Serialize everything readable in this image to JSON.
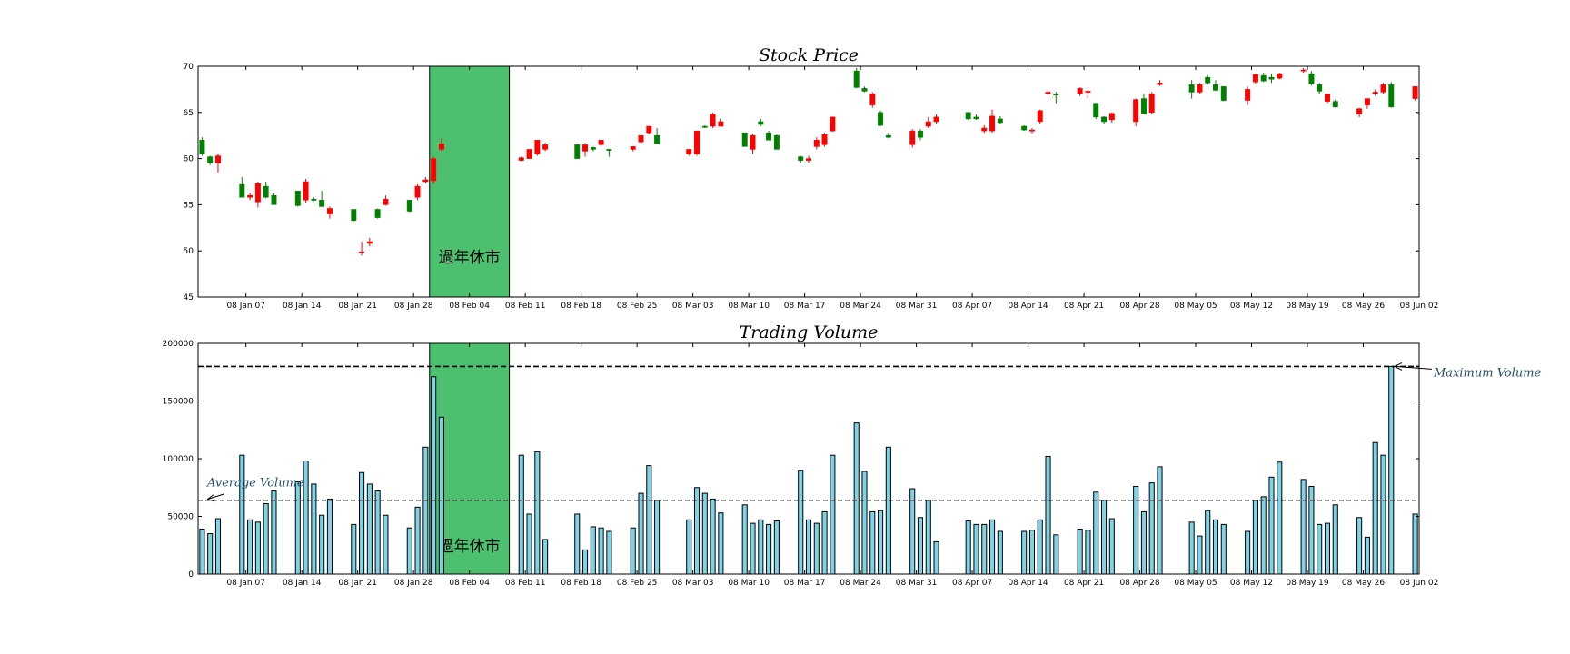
{
  "chart_data": [
    {
      "type": "candlestick",
      "title": "Stock Price",
      "xlabel": "",
      "ylabel": "",
      "xlim": [
        "2014-01-01",
        "2014-06-03"
      ],
      "ylim": [
        45,
        70
      ],
      "yticks": [
        45,
        50,
        55,
        60,
        65,
        70
      ],
      "xticks": [
        "08 Jan 07",
        "08 Jan 14",
        "08 Jan 21",
        "08 Jan 28",
        "08 Feb 04",
        "08 Feb 11",
        "08 Feb 18",
        "08 Feb 25",
        "08 Mar 03",
        "08 Mar 10",
        "08 Mar 17",
        "08 Mar 24",
        "08 Mar 31",
        "08 Apr 07",
        "08 Apr 14",
        "08 Apr 21",
        "08 Apr 28",
        "08 May 05",
        "08 May 12",
        "08 May 19",
        "08 May 26",
        "08 Jun 02"
      ],
      "holiday": {
        "label": "過年休市",
        "start": "2014-01-30",
        "end": "2014-02-09",
        "color": "#4cc06f"
      },
      "colors": {
        "up": "#ff0000",
        "down": "#008000"
      },
      "candles": [
        [
          "2014-01-01",
          62.0,
          62.3,
          60.3,
          60.5
        ],
        [
          "2014-01-02",
          60.2,
          60.3,
          59.3,
          59.5
        ],
        [
          "2014-01-03",
          59.5,
          60.5,
          58.5,
          60.3
        ],
        [
          "2014-01-06",
          57.2,
          58.0,
          55.8,
          55.8
        ],
        [
          "2014-01-07",
          55.8,
          56.3,
          55.5,
          56.0
        ],
        [
          "2014-01-08",
          55.3,
          57.5,
          54.7,
          57.3
        ],
        [
          "2014-01-09",
          57.0,
          57.5,
          55.7,
          55.8
        ],
        [
          "2014-01-10",
          56.0,
          56.2,
          55.0,
          55.0
        ],
        [
          "2014-01-13",
          56.5,
          56.5,
          54.8,
          54.9
        ],
        [
          "2014-01-14",
          55.5,
          57.8,
          55.2,
          57.5
        ],
        [
          "2014-01-15",
          55.6,
          55.8,
          55.4,
          55.5
        ],
        [
          "2014-01-16",
          55.5,
          56.5,
          54.8,
          54.8
        ],
        [
          "2014-01-17",
          54.0,
          54.8,
          53.5,
          54.6
        ],
        [
          "2014-01-20",
          54.5,
          54.5,
          53.2,
          53.3
        ],
        [
          "2014-01-21",
          49.8,
          51.0,
          49.5,
          49.9
        ],
        [
          "2014-01-22",
          50.8,
          51.4,
          50.5,
          51.0
        ],
        [
          "2014-01-23",
          54.5,
          54.6,
          53.5,
          53.6
        ],
        [
          "2014-01-24",
          55.0,
          56.0,
          54.9,
          55.6
        ],
        [
          "2014-01-27",
          55.5,
          55.5,
          54.2,
          54.3
        ],
        [
          "2014-01-28",
          55.8,
          57.2,
          55.5,
          57.0
        ],
        [
          "2014-01-29",
          57.5,
          58.0,
          57.3,
          57.7
        ],
        [
          "2014-01-30",
          57.6,
          60.2,
          57.2,
          60.0
        ],
        [
          "2014-01-31",
          61.0,
          62.2,
          60.8,
          61.6
        ],
        [
          "2014-02-10",
          59.8,
          60.2,
          59.7,
          60.1
        ],
        [
          "2014-02-11",
          60.0,
          61.0,
          60.0,
          61.0
        ],
        [
          "2014-02-12",
          60.5,
          62.0,
          60.3,
          62.0
        ],
        [
          "2014-02-13",
          61.0,
          61.7,
          60.8,
          61.5
        ],
        [
          "2014-02-17",
          61.5,
          61.5,
          60.0,
          60.0
        ],
        [
          "2014-02-18",
          60.8,
          61.7,
          60.2,
          61.5
        ],
        [
          "2014-02-19",
          61.2,
          61.3,
          60.8,
          61.0
        ],
        [
          "2014-02-20",
          61.5,
          62.0,
          61.4,
          62.0
        ],
        [
          "2014-02-21",
          61.0,
          61.0,
          60.2,
          60.9
        ],
        [
          "2014-02-24",
          61.0,
          61.3,
          60.8,
          61.3
        ],
        [
          "2014-02-25",
          61.8,
          62.5,
          61.7,
          62.5
        ],
        [
          "2014-02-26",
          62.8,
          63.5,
          62.7,
          63.5
        ],
        [
          "2014-02-27",
          62.5,
          63.3,
          61.6,
          61.6
        ],
        [
          "2014-03-03",
          60.5,
          61.0,
          60.3,
          61.0
        ],
        [
          "2014-03-04",
          60.5,
          63.0,
          60.3,
          63.0
        ],
        [
          "2014-03-05",
          63.5,
          63.6,
          63.3,
          63.4
        ],
        [
          "2014-03-06",
          63.5,
          65.0,
          63.3,
          64.8
        ],
        [
          "2014-03-07",
          63.5,
          64.3,
          63.5,
          64.0
        ],
        [
          "2014-03-10",
          62.8,
          62.8,
          61.3,
          61.3
        ],
        [
          "2014-03-11",
          61.0,
          62.7,
          60.5,
          62.5
        ],
        [
          "2014-03-12",
          64.0,
          64.3,
          63.5,
          63.7
        ],
        [
          "2014-03-13",
          62.8,
          63.0,
          62.0,
          62.0
        ],
        [
          "2014-03-14",
          62.5,
          62.7,
          61.0,
          61.0
        ],
        [
          "2014-03-17",
          60.2,
          60.3,
          59.5,
          59.8
        ],
        [
          "2014-03-18",
          59.8,
          60.3,
          59.5,
          60.0
        ],
        [
          "2014-03-19",
          61.3,
          62.3,
          61.0,
          62.0
        ],
        [
          "2014-03-20",
          61.5,
          62.8,
          61.3,
          62.6
        ],
        [
          "2014-03-21",
          63.0,
          64.5,
          62.9,
          64.5
        ],
        [
          "2014-03-24",
          69.5,
          69.8,
          67.6,
          67.7
        ],
        [
          "2014-03-25",
          67.6,
          67.8,
          67.2,
          67.3
        ],
        [
          "2014-03-26",
          65.8,
          67.2,
          65.5,
          67.0
        ],
        [
          "2014-03-27",
          65.0,
          65.2,
          63.5,
          63.6
        ],
        [
          "2014-03-28",
          62.5,
          62.8,
          62.2,
          62.3
        ],
        [
          "2014-03-31",
          61.5,
          63.2,
          61.2,
          63.0
        ],
        [
          "2014-04-01",
          63.0,
          63.2,
          62.0,
          62.3
        ],
        [
          "2014-04-02",
          63.5,
          64.5,
          63.3,
          64.0
        ],
        [
          "2014-04-03",
          64.0,
          64.8,
          63.8,
          64.5
        ],
        [
          "2014-04-07",
          65.0,
          65.0,
          64.2,
          64.3
        ],
        [
          "2014-04-08",
          64.5,
          64.8,
          64.2,
          64.3
        ],
        [
          "2014-04-09",
          63.0,
          63.6,
          62.8,
          63.3
        ],
        [
          "2014-04-10",
          63.0,
          65.3,
          62.8,
          64.6
        ],
        [
          "2014-04-11",
          64.3,
          64.6,
          63.8,
          63.9
        ],
        [
          "2014-04-14",
          63.5,
          63.6,
          63.0,
          63.1
        ],
        [
          "2014-04-15",
          63.0,
          63.3,
          62.7,
          63.1
        ],
        [
          "2014-04-16",
          64.0,
          65.3,
          63.8,
          65.2
        ],
        [
          "2014-04-17",
          67.0,
          67.5,
          66.8,
          67.2
        ],
        [
          "2014-04-18",
          67.0,
          67.2,
          66.0,
          66.9
        ],
        [
          "2014-04-21",
          67.0,
          67.7,
          66.8,
          67.6
        ],
        [
          "2014-04-22",
          67.2,
          67.5,
          66.5,
          67.3
        ],
        [
          "2014-04-23",
          66.0,
          66.0,
          64.3,
          64.5
        ],
        [
          "2014-04-24",
          64.5,
          64.6,
          63.8,
          64.0
        ],
        [
          "2014-04-25",
          64.2,
          65.0,
          63.9,
          64.9
        ],
        [
          "2014-04-28",
          64.0,
          66.5,
          63.5,
          66.4
        ],
        [
          "2014-04-29",
          66.5,
          67.0,
          64.8,
          64.8
        ],
        [
          "2014-04-30",
          65.0,
          67.2,
          64.8,
          67.0
        ],
        [
          "2014-05-01",
          68.0,
          68.5,
          67.9,
          68.2
        ],
        [
          "2014-05-05",
          68.0,
          68.5,
          66.5,
          67.2
        ],
        [
          "2014-05-06",
          67.2,
          68.2,
          67.0,
          68.0
        ],
        [
          "2014-05-07",
          68.8,
          69.0,
          68.0,
          68.2
        ],
        [
          "2014-05-08",
          68.0,
          68.5,
          67.3,
          67.4
        ],
        [
          "2014-05-09",
          67.8,
          67.8,
          66.2,
          66.3
        ],
        [
          "2014-05-12",
          66.3,
          67.8,
          65.8,
          67.5
        ],
        [
          "2014-05-13",
          68.3,
          69.2,
          68.1,
          69.1
        ],
        [
          "2014-05-14",
          69.0,
          69.3,
          68.3,
          68.4
        ],
        [
          "2014-05-15",
          68.8,
          69.2,
          68.2,
          68.6
        ],
        [
          "2014-05-16",
          68.7,
          69.3,
          68.6,
          69.2
        ],
        [
          "2014-05-19",
          69.5,
          69.8,
          69.3,
          69.6
        ],
        [
          "2014-05-20",
          69.2,
          69.5,
          67.9,
          68.1
        ],
        [
          "2014-05-21",
          68.0,
          68.2,
          67.0,
          67.3
        ],
        [
          "2014-05-22",
          66.2,
          67.0,
          66.0,
          67.0
        ],
        [
          "2014-05-23",
          66.2,
          66.4,
          65.5,
          65.6
        ],
        [
          "2014-05-26",
          64.8,
          65.5,
          64.5,
          65.4
        ],
        [
          "2014-05-27",
          65.8,
          66.5,
          65.4,
          66.5
        ],
        [
          "2014-05-28",
          67.0,
          67.5,
          66.8,
          67.2
        ],
        [
          "2014-05-29",
          67.2,
          68.2,
          67.0,
          68.0
        ],
        [
          "2014-05-30",
          68.0,
          68.3,
          65.5,
          65.6
        ],
        [
          "2014-06-02",
          66.5,
          67.8,
          66.3,
          67.8
        ]
      ]
    },
    {
      "type": "bar",
      "title": "Trading Volume",
      "xlabel": "",
      "ylabel": "",
      "xlim": [
        "2014-01-01",
        "2014-06-03"
      ],
      "ylim": [
        0,
        200000
      ],
      "yticks": [
        0,
        50000,
        100000,
        150000,
        200000
      ],
      "xticks": [
        "08 Jan 07",
        "08 Jan 14",
        "08 Jan 21",
        "08 Jan 28",
        "08 Feb 04",
        "08 Feb 11",
        "08 Feb 18",
        "08 Feb 25",
        "08 Mar 03",
        "08 Mar 10",
        "08 Mar 17",
        "08 Mar 24",
        "08 Mar 31",
        "08 Apr 07",
        "08 Apr 14",
        "08 Apr 21",
        "08 Apr 28",
        "08 May 05",
        "08 May 12",
        "08 May 19",
        "08 May 26",
        "08 Jun 02"
      ],
      "holiday": {
        "label": "過年休市",
        "start": "2014-01-30",
        "end": "2014-02-09",
        "color": "#4cc06f"
      },
      "bar_color": "#7fd3e6",
      "avg_line": {
        "value": 64000,
        "label": "Average Volume"
      },
      "max_line": {
        "value": 180000,
        "label": "Maximum Volume"
      },
      "bars": [
        [
          "2014-01-01",
          39000
        ],
        [
          "2014-01-02",
          35000
        ],
        [
          "2014-01-03",
          48000
        ],
        [
          "2014-01-06",
          103000
        ],
        [
          "2014-01-07",
          47000
        ],
        [
          "2014-01-08",
          45000
        ],
        [
          "2014-01-09",
          61000
        ],
        [
          "2014-01-10",
          72000
        ],
        [
          "2014-01-13",
          80000
        ],
        [
          "2014-01-14",
          98000
        ],
        [
          "2014-01-15",
          78000
        ],
        [
          "2014-01-16",
          51000
        ],
        [
          "2014-01-17",
          65000
        ],
        [
          "2014-01-20",
          43000
        ],
        [
          "2014-01-21",
          88000
        ],
        [
          "2014-01-22",
          78000
        ],
        [
          "2014-01-23",
          72000
        ],
        [
          "2014-01-24",
          51000
        ],
        [
          "2014-01-27",
          40000
        ],
        [
          "2014-01-28",
          58000
        ],
        [
          "2014-01-29",
          110000
        ],
        [
          "2014-01-30",
          171000
        ],
        [
          "2014-01-31",
          136000
        ],
        [
          "2014-02-10",
          103000
        ],
        [
          "2014-02-11",
          52000
        ],
        [
          "2014-02-12",
          106000
        ],
        [
          "2014-02-13",
          30000
        ],
        [
          "2014-02-17",
          52000
        ],
        [
          "2014-02-18",
          21000
        ],
        [
          "2014-02-19",
          41000
        ],
        [
          "2014-02-20",
          40000
        ],
        [
          "2014-02-21",
          37000
        ],
        [
          "2014-02-24",
          40000
        ],
        [
          "2014-02-25",
          70000
        ],
        [
          "2014-02-26",
          94000
        ],
        [
          "2014-02-27",
          64000
        ],
        [
          "2014-03-03",
          47000
        ],
        [
          "2014-03-04",
          75000
        ],
        [
          "2014-03-05",
          70000
        ],
        [
          "2014-03-06",
          65000
        ],
        [
          "2014-03-07",
          53000
        ],
        [
          "2014-03-10",
          60000
        ],
        [
          "2014-03-11",
          44000
        ],
        [
          "2014-03-12",
          47000
        ],
        [
          "2014-03-13",
          43000
        ],
        [
          "2014-03-14",
          46000
        ],
        [
          "2014-03-17",
          90000
        ],
        [
          "2014-03-18",
          47000
        ],
        [
          "2014-03-19",
          44000
        ],
        [
          "2014-03-20",
          54000
        ],
        [
          "2014-03-21",
          103000
        ],
        [
          "2014-03-24",
          131000
        ],
        [
          "2014-03-25",
          89000
        ],
        [
          "2014-03-26",
          54000
        ],
        [
          "2014-03-27",
          55000
        ],
        [
          "2014-03-28",
          110000
        ],
        [
          "2014-03-31",
          74000
        ],
        [
          "2014-04-01",
          49000
        ],
        [
          "2014-04-02",
          64000
        ],
        [
          "2014-04-03",
          28000
        ],
        [
          "2014-04-07",
          46000
        ],
        [
          "2014-04-08",
          43000
        ],
        [
          "2014-04-09",
          43000
        ],
        [
          "2014-04-10",
          47000
        ],
        [
          "2014-04-11",
          37000
        ],
        [
          "2014-04-14",
          37000
        ],
        [
          "2014-04-15",
          38000
        ],
        [
          "2014-04-16",
          47000
        ],
        [
          "2014-04-17",
          102000
        ],
        [
          "2014-04-18",
          34000
        ],
        [
          "2014-04-21",
          39000
        ],
        [
          "2014-04-22",
          38000
        ],
        [
          "2014-04-23",
          71000
        ],
        [
          "2014-04-24",
          64000
        ],
        [
          "2014-04-25",
          48000
        ],
        [
          "2014-04-28",
          76000
        ],
        [
          "2014-04-29",
          54000
        ],
        [
          "2014-04-30",
          79000
        ],
        [
          "2014-05-01",
          93000
        ],
        [
          "2014-05-05",
          45000
        ],
        [
          "2014-05-06",
          33000
        ],
        [
          "2014-05-07",
          55000
        ],
        [
          "2014-05-08",
          47000
        ],
        [
          "2014-05-09",
          43000
        ],
        [
          "2014-05-12",
          37000
        ],
        [
          "2014-05-13",
          64000
        ],
        [
          "2014-05-14",
          67000
        ],
        [
          "2014-05-15",
          84000
        ],
        [
          "2014-05-16",
          97000
        ],
        [
          "2014-05-19",
          82000
        ],
        [
          "2014-05-20",
          76000
        ],
        [
          "2014-05-21",
          43000
        ],
        [
          "2014-05-22",
          44000
        ],
        [
          "2014-05-23",
          60000
        ],
        [
          "2014-05-26",
          49000
        ],
        [
          "2014-05-27",
          32000
        ],
        [
          "2014-05-28",
          114000
        ],
        [
          "2014-05-29",
          103000
        ],
        [
          "2014-05-30",
          180000
        ],
        [
          "2014-06-02",
          52000
        ]
      ]
    }
  ]
}
